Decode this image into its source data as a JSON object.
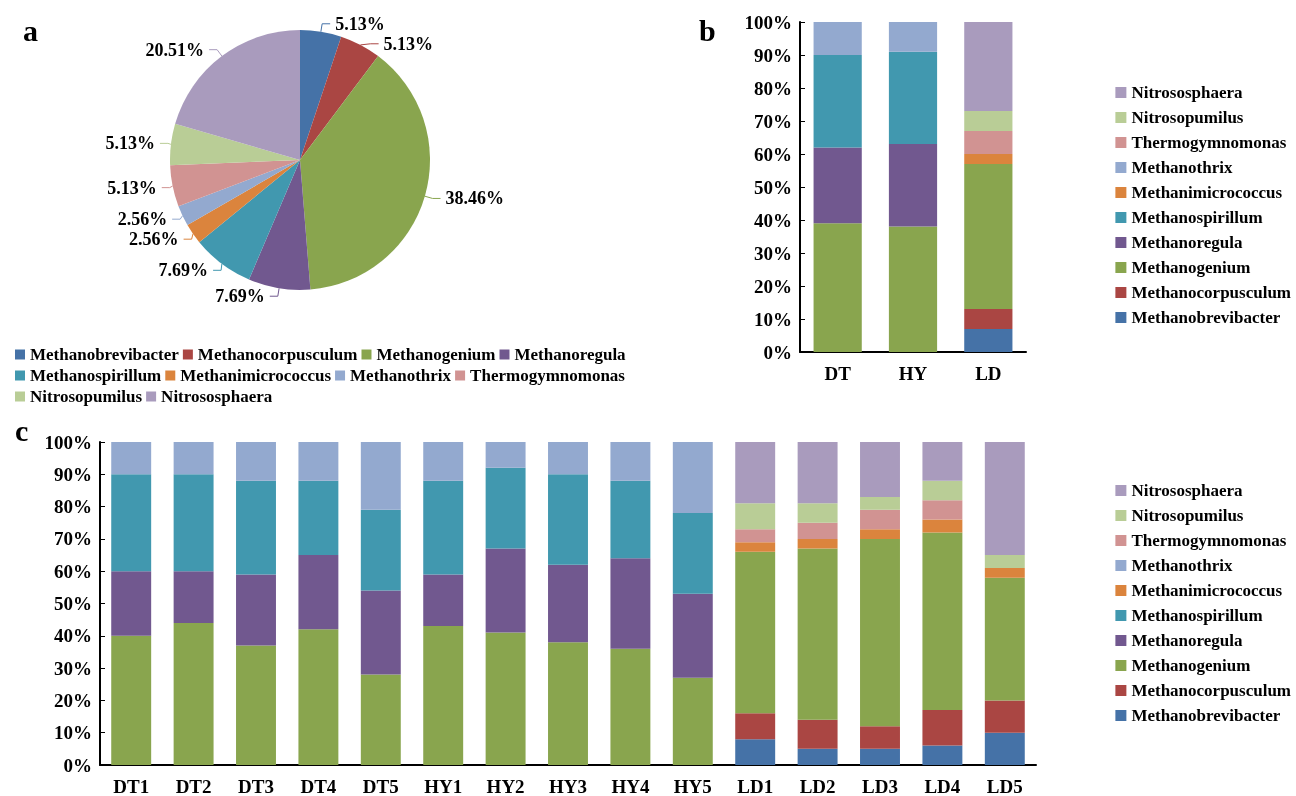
{
  "chart_data": [
    {
      "type": "pie",
      "title": "a",
      "categories": [
        "Methanobrevibacter",
        "Methanocorpusculum",
        "Methanogenium",
        "Methanoregula",
        "Methanospirillum",
        "Methanimicrococcus",
        "Methanothrix",
        "Thermogymnomonas",
        "Nitrosopumilus",
        "Nitrososphaera"
      ],
      "values": [
        5.13,
        5.13,
        38.46,
        7.69,
        7.69,
        2.56,
        2.56,
        5.13,
        5.13,
        20.51
      ],
      "colors": [
        "#4572a7",
        "#aa4643",
        "#89a54e",
        "#71588f",
        "#4198af",
        "#db843d",
        "#93a9cf",
        "#d19392",
        "#b9cd96",
        "#a99bbd"
      ],
      "value_labels": [
        "5.13%",
        "5.13%",
        "38.46%",
        "7.69%",
        "7.69%",
        "2.56%",
        "2.56%",
        "5.13%",
        "5.13%",
        "20.51%"
      ],
      "legend": "bottom"
    },
    {
      "type": "bar",
      "title": "b",
      "stacked": true,
      "categories": [
        "DT",
        "HY",
        "LD"
      ],
      "ylim": [
        0,
        100
      ],
      "yticks": [
        {
          "value": 0,
          "label": "0%"
        },
        {
          "value": 10,
          "label": "10%"
        },
        {
          "value": 20,
          "label": "20%"
        },
        {
          "value": 30,
          "label": "30%"
        },
        {
          "value": 40,
          "label": "40%"
        },
        {
          "value": 50,
          "label": "50%"
        },
        {
          "value": 60,
          "label": "60%"
        },
        {
          "value": 70,
          "label": "70%"
        },
        {
          "value": 80,
          "label": "80%"
        },
        {
          "value": 90,
          "label": "90%"
        },
        {
          "value": 100,
          "label": "100%"
        }
      ],
      "grid": false,
      "legend": "right",
      "series": [
        {
          "name": "Methanobrevibacter",
          "color": "#4572a7",
          "values": [
            0,
            0,
            7
          ]
        },
        {
          "name": "Methanocorpusculum",
          "color": "#aa4643",
          "values": [
            0,
            0,
            6
          ]
        },
        {
          "name": "Methanogenium",
          "color": "#89a54e",
          "values": [
            39,
            38,
            44
          ]
        },
        {
          "name": "Methanoregula",
          "color": "#71588f",
          "values": [
            23,
            25,
            0
          ]
        },
        {
          "name": "Methanospirillum",
          "color": "#4198af",
          "values": [
            28,
            28,
            0
          ]
        },
        {
          "name": "Methanimicrococcus",
          "color": "#db843d",
          "values": [
            0,
            0,
            3
          ]
        },
        {
          "name": "Methanothrix",
          "color": "#93a9cf",
          "values": [
            10,
            9,
            0
          ]
        },
        {
          "name": "Thermogymnomonas",
          "color": "#d19392",
          "values": [
            0,
            0,
            7
          ]
        },
        {
          "name": "Nitrosopumilus",
          "color": "#b9cd96",
          "values": [
            0,
            0,
            6
          ]
        },
        {
          "name": "Nitrososphaera",
          "color": "#a99bbd",
          "values": [
            0,
            0,
            27
          ]
        }
      ]
    },
    {
      "type": "bar",
      "title": "c",
      "stacked": true,
      "categories": [
        "DT1",
        "DT2",
        "DT3",
        "DT4",
        "DT5",
        "HY1",
        "HY2",
        "HY3",
        "HY4",
        "HY5",
        "LD1",
        "LD2",
        "LD3",
        "LD4",
        "LD5"
      ],
      "ylim": [
        0,
        100
      ],
      "yticks": [
        {
          "value": 0,
          "label": "0%"
        },
        {
          "value": 10,
          "label": "10%"
        },
        {
          "value": 20,
          "label": "20%"
        },
        {
          "value": 30,
          "label": "30%"
        },
        {
          "value": 40,
          "label": "40%"
        },
        {
          "value": 50,
          "label": "50%"
        },
        {
          "value": 60,
          "label": "60%"
        },
        {
          "value": 70,
          "label": "70%"
        },
        {
          "value": 80,
          "label": "80%"
        },
        {
          "value": 90,
          "label": "90%"
        },
        {
          "value": 100,
          "label": "100%"
        }
      ],
      "grid": false,
      "legend": "right",
      "series": [
        {
          "name": "Methanobrevibacter",
          "color": "#4572a7",
          "values": [
            0,
            0,
            0,
            0,
            0,
            0,
            0,
            0,
            0,
            0,
            8,
            5,
            5,
            6,
            10
          ]
        },
        {
          "name": "Methanocorpusculum",
          "color": "#aa4643",
          "values": [
            0,
            0,
            0,
            0,
            0,
            0,
            0,
            0,
            0,
            0,
            8,
            9,
            7,
            11,
            10
          ]
        },
        {
          "name": "Methanogenium",
          "color": "#89a54e",
          "values": [
            40,
            44,
            37,
            42,
            28,
            43,
            41,
            38,
            36,
            27,
            50,
            53,
            58,
            55,
            38
          ]
        },
        {
          "name": "Methanoregula",
          "color": "#71588f",
          "values": [
            20,
            16,
            22,
            23,
            26,
            16,
            26,
            24,
            28,
            26,
            0,
            0,
            0,
            0,
            0
          ]
        },
        {
          "name": "Methanospirillum",
          "color": "#4198af",
          "values": [
            30,
            30,
            29,
            23,
            25,
            29,
            25,
            28,
            24,
            25,
            0,
            0,
            0,
            0,
            0
          ]
        },
        {
          "name": "Methanimicrococcus",
          "color": "#db843d",
          "values": [
            0,
            0,
            0,
            0,
            0,
            0,
            0,
            0,
            0,
            0,
            3,
            3,
            3,
            4,
            3
          ]
        },
        {
          "name": "Methanothrix",
          "color": "#93a9cf",
          "values": [
            10,
            10,
            12,
            12,
            21,
            12,
            8,
            10,
            12,
            22,
            0,
            0,
            0,
            0,
            0
          ]
        },
        {
          "name": "Thermogymnomonas",
          "color": "#d19392",
          "values": [
            0,
            0,
            0,
            0,
            0,
            0,
            0,
            0,
            0,
            0,
            4,
            5,
            6,
            6,
            0
          ]
        },
        {
          "name": "Nitrosopumilus",
          "color": "#b9cd96",
          "values": [
            0,
            0,
            0,
            0,
            0,
            0,
            0,
            0,
            0,
            0,
            8,
            6,
            4,
            6,
            4
          ]
        },
        {
          "name": "Nitrososphaera",
          "color": "#a99bbd",
          "values": [
            0,
            0,
            0,
            0,
            0,
            0,
            0,
            0,
            0,
            0,
            19,
            19,
            17,
            12,
            35
          ]
        }
      ]
    }
  ]
}
